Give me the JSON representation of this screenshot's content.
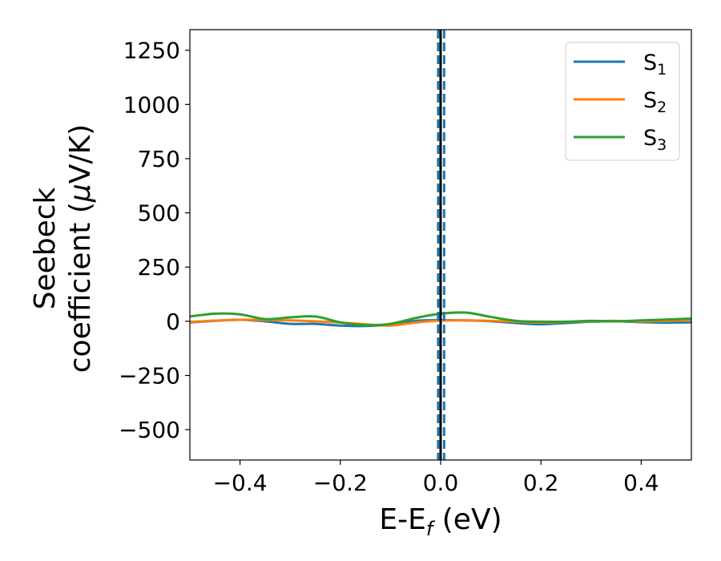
{
  "chart_data": {
    "type": "line",
    "title": "",
    "xlabel": {
      "main": "E-E",
      "sub": "f",
      "tail": " (eV)"
    },
    "ylabel": {
      "line1": "Seebeck",
      "line2_prefix": "coefficient  (",
      "mu": "μ",
      "line2_suffix": "V/K)"
    },
    "xlim": [
      -0.5,
      0.5
    ],
    "ylim": [
      -640,
      1345
    ],
    "x_ticks": [
      -0.4,
      -0.2,
      0.0,
      0.2,
      0.4
    ],
    "x_tick_labels": [
      "−0.4",
      "−0.2",
      "0.0",
      "0.2",
      "0.4"
    ],
    "y_ticks": [
      -500,
      -250,
      0,
      250,
      500,
      750,
      1000,
      1250
    ],
    "y_tick_labels": [
      "−500",
      "−250",
      "0",
      "250",
      "500",
      "750",
      "1000",
      "1250"
    ],
    "vertical_lines": [
      {
        "x": 0.0,
        "style": "solid",
        "color": "#000000"
      },
      {
        "x": -0.005,
        "style": "dashed",
        "color": "#1f77b4"
      },
      {
        "x": 0.007,
        "style": "dashed",
        "color": "#1f77b4"
      }
    ],
    "legend_position": "top-right",
    "series": [
      {
        "name": "S",
        "sub": "1",
        "color": "#1f77b4",
        "x": [
          -0.5,
          -0.45,
          -0.4,
          -0.35,
          -0.3,
          -0.25,
          -0.2,
          -0.15,
          -0.1,
          -0.05,
          0.0,
          0.05,
          0.1,
          0.15,
          0.2,
          0.25,
          0.3,
          0.35,
          0.4,
          0.45,
          0.5
        ],
        "y": [
          -5,
          2,
          7,
          0,
          -12,
          -12,
          -20,
          -22,
          -15,
          2,
          5,
          4,
          0,
          -8,
          -14,
          -8,
          -2,
          0,
          -4,
          -6,
          -5
        ]
      },
      {
        "name": "S",
        "sub": "2",
        "color": "#ff7f0e",
        "x": [
          -0.5,
          -0.45,
          -0.4,
          -0.35,
          -0.3,
          -0.25,
          -0.2,
          -0.15,
          -0.1,
          -0.05,
          0.0,
          0.05,
          0.1,
          0.15,
          0.2,
          0.25,
          0.3,
          0.35,
          0.4,
          0.45,
          0.5
        ],
        "y": [
          -3,
          3,
          7,
          6,
          4,
          0,
          -6,
          -14,
          -20,
          -6,
          3,
          4,
          2,
          -2,
          -6,
          -3,
          0,
          2,
          -1,
          2,
          4
        ]
      },
      {
        "name": "S",
        "sub": "3",
        "color": "#2ca02c",
        "x": [
          -0.5,
          -0.45,
          -0.4,
          -0.35,
          -0.3,
          -0.25,
          -0.2,
          -0.15,
          -0.1,
          -0.05,
          0.0,
          0.05,
          0.1,
          0.15,
          0.2,
          0.25,
          0.3,
          0.35,
          0.4,
          0.45,
          0.5
        ],
        "y": [
          22,
          35,
          32,
          10,
          18,
          22,
          -5,
          -18,
          -12,
          15,
          35,
          40,
          20,
          2,
          -2,
          -2,
          2,
          0,
          4,
          8,
          12
        ]
      }
    ]
  }
}
